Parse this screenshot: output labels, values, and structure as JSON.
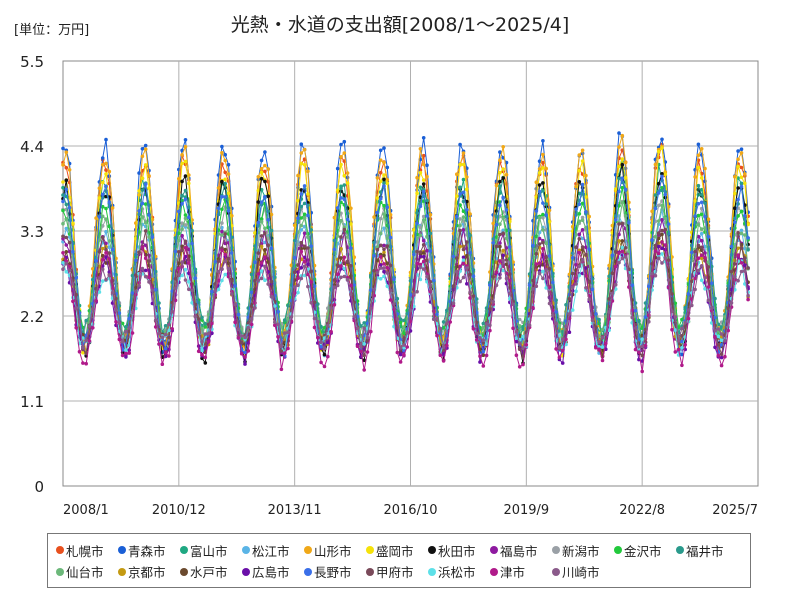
{
  "chart_data": {
    "type": "line",
    "title": "光熱・水道の支出額[2008/1～2025/4]",
    "unit_label": "[単位：万円]",
    "xlabel": "",
    "ylabel": "",
    "x_range": [
      "2008/1",
      "2025/7"
    ],
    "x_ticks": [
      "2008/1",
      "2010/12",
      "2013/11",
      "2016/10",
      "2019/9",
      "2022/8",
      "2025/7"
    ],
    "y_ticks": [
      "0",
      "1.1",
      "2.2",
      "3.3",
      "4.4",
      "5.5"
    ],
    "ylim": [
      0,
      5.5
    ],
    "grid": true,
    "legend_position": "bottom",
    "series": [
      {
        "name": "札幌市",
        "color": "#e8501e",
        "approx_winter_peak": 4.2,
        "approx_summer_low": 1.8
      },
      {
        "name": "青森市",
        "color": "#1a5fd6",
        "approx_winter_peak": 4.4,
        "approx_summer_low": 1.8
      },
      {
        "name": "富山市",
        "color": "#1fa882",
        "approx_winter_peak": 3.9,
        "approx_summer_low": 1.9
      },
      {
        "name": "松江市",
        "color": "#5ab4e6",
        "approx_winter_peak": 3.3,
        "approx_summer_low": 1.8
      },
      {
        "name": "山形市",
        "color": "#f0a818",
        "approx_winter_peak": 4.3,
        "approx_summer_low": 1.9
      },
      {
        "name": "盛岡市",
        "color": "#f5e20a",
        "approx_winter_peak": 4.1,
        "approx_summer_low": 1.8
      },
      {
        "name": "秋田市",
        "color": "#111111",
        "approx_winter_peak": 3.9,
        "approx_summer_low": 1.7
      },
      {
        "name": "福島市",
        "color": "#8e1aa0",
        "approx_winter_peak": 3.2,
        "approx_summer_low": 1.8
      },
      {
        "name": "新潟市",
        "color": "#9aa0a6",
        "approx_winter_peak": 3.5,
        "approx_summer_low": 2.0
      },
      {
        "name": "金沢市",
        "color": "#22c93c",
        "approx_winter_peak": 3.6,
        "approx_summer_low": 2.0
      },
      {
        "name": "福井市",
        "color": "#2a9a8c",
        "approx_winter_peak": 3.8,
        "approx_summer_low": 2.0
      },
      {
        "name": "仙台市",
        "color": "#6cb87a",
        "approx_winter_peak": 3.4,
        "approx_summer_low": 1.9
      },
      {
        "name": "京都市",
        "color": "#c49a12",
        "approx_winter_peak": 3.0,
        "approx_summer_low": 1.8
      },
      {
        "name": "水戸市",
        "color": "#6b4a2e",
        "approx_winter_peak": 3.0,
        "approx_summer_low": 1.8
      },
      {
        "name": "広島市",
        "color": "#6a0fa8",
        "approx_winter_peak": 2.9,
        "approx_summer_low": 1.7
      },
      {
        "name": "長野市",
        "color": "#3a6fe8",
        "approx_winter_peak": 3.8,
        "approx_summer_low": 1.8
      },
      {
        "name": "甲府市",
        "color": "#7a4a5a",
        "approx_winter_peak": 3.2,
        "approx_summer_low": 1.8
      },
      {
        "name": "浜松市",
        "color": "#5de0e8",
        "approx_winter_peak": 2.8,
        "approx_summer_low": 1.8
      },
      {
        "name": "津市",
        "color": "#b01a8a",
        "approx_winter_peak": 3.0,
        "approx_summer_low": 1.6
      },
      {
        "name": "川崎市",
        "color": "#8a5a8a",
        "approx_winter_peak": 2.8,
        "approx_summer_low": 1.9
      }
    ]
  }
}
